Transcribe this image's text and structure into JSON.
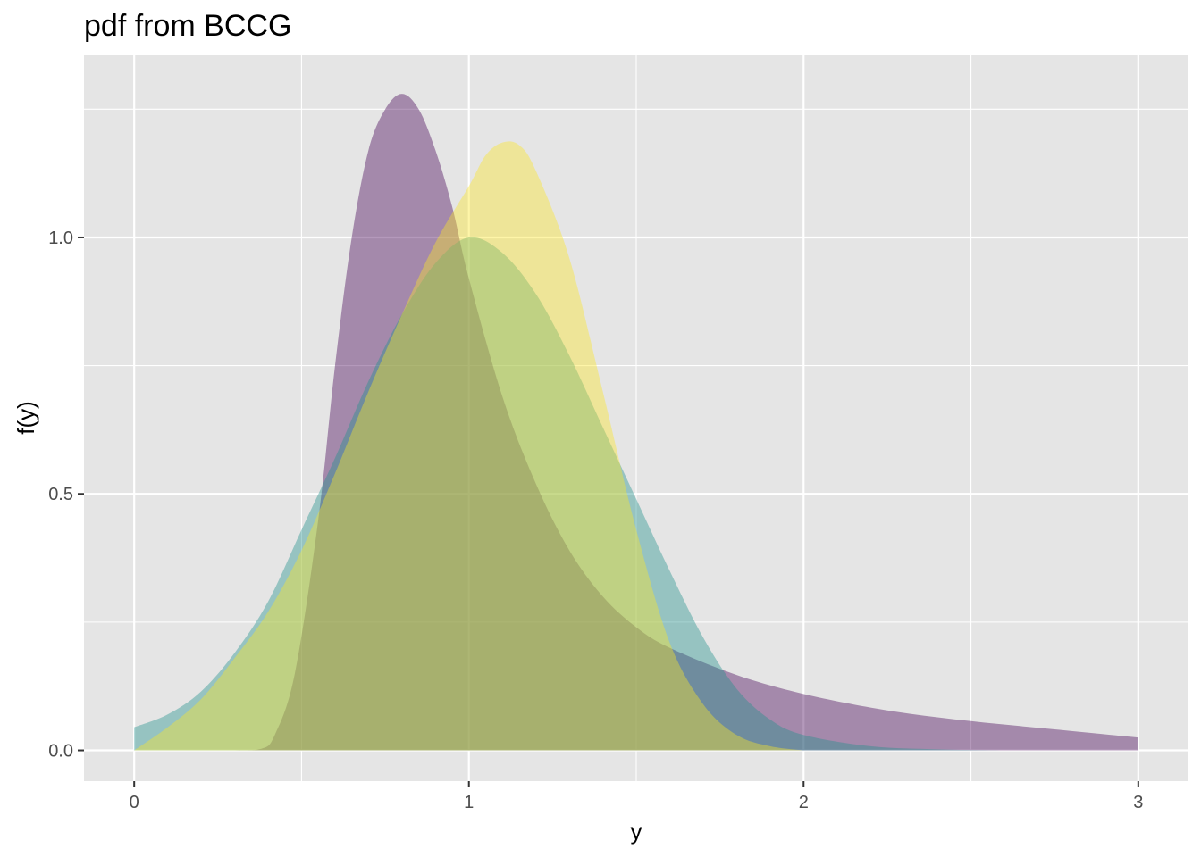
{
  "chart_data": {
    "type": "area",
    "title": "pdf from  BCCG",
    "xlabel": "y",
    "ylabel": "f(y)",
    "xlim": [
      -0.15,
      3.15
    ],
    "ylim": [
      -0.06,
      1.355
    ],
    "x_ticks": [
      0,
      1,
      2,
      3
    ],
    "x_tick_labels": [
      "0",
      "1",
      "2",
      "3"
    ],
    "x_minor": [
      0.5,
      1.5,
      2.5
    ],
    "y_ticks": [
      0.0,
      0.5,
      1.0
    ],
    "y_tick_labels": [
      "0.0",
      "0.5",
      "1.0"
    ],
    "y_minor": [
      0.25,
      0.75,
      1.25
    ],
    "grid": true,
    "panel_background": "#e5e5e5",
    "legend": "none",
    "series": [
      {
        "color": "#440154",
        "opacity": 0.4,
        "points": [
          [
            0.0,
            0.0
          ],
          [
            0.3,
            0.0
          ],
          [
            0.38,
            0.003
          ],
          [
            0.42,
            0.03
          ],
          [
            0.48,
            0.15
          ],
          [
            0.55,
            0.45
          ],
          [
            0.6,
            0.75
          ],
          [
            0.65,
            1.0
          ],
          [
            0.7,
            1.17
          ],
          [
            0.75,
            1.25
          ],
          [
            0.8,
            1.28
          ],
          [
            0.85,
            1.25
          ],
          [
            0.9,
            1.17
          ],
          [
            0.95,
            1.06
          ],
          [
            1.0,
            0.92
          ],
          [
            1.1,
            0.69
          ],
          [
            1.2,
            0.52
          ],
          [
            1.3,
            0.39
          ],
          [
            1.4,
            0.3
          ],
          [
            1.5,
            0.24
          ],
          [
            1.6,
            0.2
          ],
          [
            1.8,
            0.147
          ],
          [
            2.0,
            0.11
          ],
          [
            2.25,
            0.078
          ],
          [
            2.5,
            0.057
          ],
          [
            2.75,
            0.041
          ],
          [
            3.0,
            0.025
          ]
        ]
      },
      {
        "color": "#21908c",
        "opacity": 0.4,
        "points": [
          [
            0.0,
            0.045
          ],
          [
            0.1,
            0.07
          ],
          [
            0.2,
            0.115
          ],
          [
            0.3,
            0.19
          ],
          [
            0.4,
            0.29
          ],
          [
            0.5,
            0.43
          ],
          [
            0.6,
            0.57
          ],
          [
            0.7,
            0.72
          ],
          [
            0.8,
            0.85
          ],
          [
            0.9,
            0.95
          ],
          [
            1.0,
            1.0
          ],
          [
            1.1,
            0.97
          ],
          [
            1.2,
            0.89
          ],
          [
            1.3,
            0.77
          ],
          [
            1.4,
            0.63
          ],
          [
            1.5,
            0.49
          ],
          [
            1.6,
            0.35
          ],
          [
            1.7,
            0.22
          ],
          [
            1.8,
            0.12
          ],
          [
            1.9,
            0.06
          ],
          [
            2.0,
            0.03
          ],
          [
            2.2,
            0.008
          ],
          [
            2.4,
            0.002
          ],
          [
            2.6,
            0.0
          ]
        ]
      },
      {
        "color": "#fde725",
        "opacity": 0.4,
        "points": [
          [
            0.0,
            0.0
          ],
          [
            0.1,
            0.045
          ],
          [
            0.2,
            0.1
          ],
          [
            0.3,
            0.18
          ],
          [
            0.4,
            0.27
          ],
          [
            0.5,
            0.39
          ],
          [
            0.6,
            0.54
          ],
          [
            0.7,
            0.7
          ],
          [
            0.8,
            0.85
          ],
          [
            0.9,
            0.99
          ],
          [
            1.0,
            1.1
          ],
          [
            1.05,
            1.16
          ],
          [
            1.1,
            1.185
          ],
          [
            1.15,
            1.18
          ],
          [
            1.2,
            1.13
          ],
          [
            1.3,
            0.96
          ],
          [
            1.4,
            0.7
          ],
          [
            1.5,
            0.43
          ],
          [
            1.6,
            0.21
          ],
          [
            1.7,
            0.09
          ],
          [
            1.8,
            0.03
          ],
          [
            1.9,
            0.008
          ],
          [
            2.0,
            0.0
          ]
        ]
      }
    ]
  }
}
